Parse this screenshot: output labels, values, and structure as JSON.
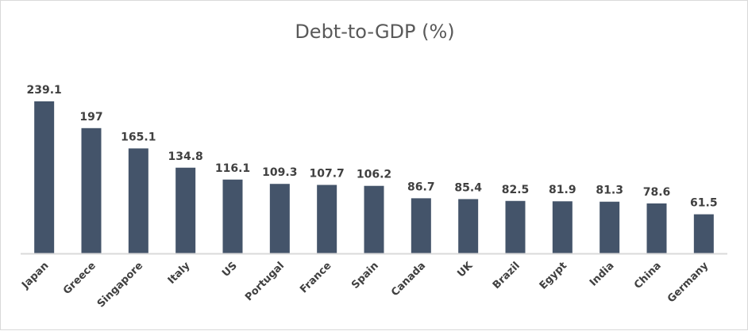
{
  "chart_data": {
    "type": "bar",
    "title": "Debt-to-GDP (%)",
    "xlabel": "",
    "ylabel": "",
    "categories": [
      "Japan",
      "Greece",
      "Singapore",
      "Italy",
      "US",
      "Portugal",
      "France",
      "Spain",
      "Canada",
      "UK",
      "Brazil",
      "Egypt",
      "India",
      "China",
      "Germany"
    ],
    "values": [
      239.1,
      197,
      165.1,
      134.8,
      116.1,
      109.3,
      107.7,
      106.2,
      86.7,
      85.4,
      82.5,
      81.9,
      81.3,
      78.6,
      61.5
    ],
    "value_labels": [
      "239.1",
      "197",
      "165.1",
      "134.8",
      "116.1",
      "109.3",
      "107.7",
      "106.2",
      "86.7",
      "85.4",
      "82.5",
      "81.9",
      "81.3",
      "78.6",
      "61.5"
    ],
    "ylim": [
      0,
      240
    ],
    "grid": false,
    "legend": "none",
    "bar_color": "#44546a",
    "axis_color": "#d9d9d9",
    "text_color": "#404040"
  }
}
